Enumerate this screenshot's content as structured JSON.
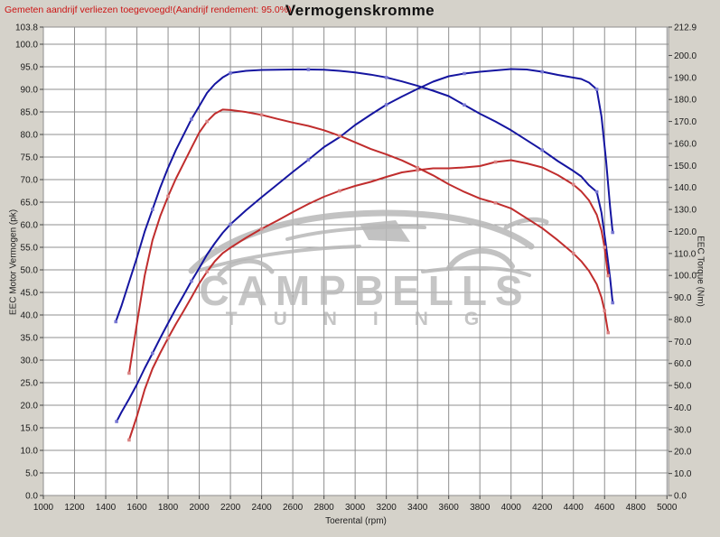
{
  "header": {
    "note": "Gemeten aandrijf verliezen toegevoegd!(Aandrijf rendement: 95.0%)",
    "title": "Vermogenskromme"
  },
  "watermark": {
    "line1": "CAMPBELLS",
    "line2": "TUNING"
  },
  "colors": {
    "background": "#d5d2ca",
    "plot_background": "#ffffff",
    "grid": "#8f8f8f",
    "note_text": "#cc1414",
    "watermark_gray": "#b7b7b7",
    "curve_blue": "#1515a0",
    "curve_blue_marker": "#7878d2",
    "curve_red": "#c02d2d",
    "curve_red_marker": "#d98585"
  },
  "chart_data": {
    "type": "line",
    "title": "Vermogenskromme",
    "xlabel": "Toerental (rpm)",
    "ylabel_left": "EEC Motor Vermogen (pk)",
    "ylabel_right": "EEC Torque (Nm)",
    "grid": true,
    "legend": "none",
    "x_range": [
      1000,
      5010
    ],
    "y_left_range": [
      0,
      103.8
    ],
    "y_right_range": [
      0,
      212.9
    ],
    "x_ticks": [
      1000,
      1200,
      1400,
      1600,
      1800,
      2000,
      2200,
      2400,
      2600,
      2800,
      3000,
      3200,
      3400,
      3600,
      3800,
      4000,
      4200,
      4400,
      4600,
      4800,
      5000
    ],
    "y_left_ticks": [
      103.8,
      100.0,
      95.0,
      90.0,
      85.0,
      80.0,
      75.0,
      70.0,
      65.0,
      60.0,
      55.0,
      50.0,
      45.0,
      40.0,
      35.0,
      30.0,
      25.0,
      20.0,
      15.0,
      10.0,
      5.0,
      0.0
    ],
    "y_right_ticks": [
      212.9,
      200.0,
      190.0,
      180.0,
      170.0,
      160.0,
      150.0,
      140.0,
      130.0,
      120.0,
      110.0,
      100.0,
      90.0,
      80.0,
      70.0,
      60.0,
      50.0,
      40.0,
      30.0,
      20.0,
      10.0,
      0.0
    ],
    "series": [
      {
        "name": "power-blue",
        "axis": "left",
        "color": "#1515a0",
        "marker_color": "#7878d2",
        "peak": "94.5 pk @ 4000 rpm",
        "points": [
          [
            1470,
            16.4
          ],
          [
            1500,
            18.4
          ],
          [
            1550,
            21.4
          ],
          [
            1600,
            24.6
          ],
          [
            1650,
            28.2
          ],
          [
            1700,
            31.5
          ],
          [
            1750,
            34.9
          ],
          [
            1800,
            38.2
          ],
          [
            1850,
            41.4
          ],
          [
            1900,
            44.4
          ],
          [
            1950,
            47.5
          ],
          [
            2000,
            50.4
          ],
          [
            2050,
            53.4
          ],
          [
            2100,
            55.9
          ],
          [
            2150,
            58.2
          ],
          [
            2200,
            60.1
          ],
          [
            2300,
            63.2
          ],
          [
            2400,
            66.1
          ],
          [
            2500,
            68.9
          ],
          [
            2600,
            71.7
          ],
          [
            2700,
            74.4
          ],
          [
            2800,
            77.2
          ],
          [
            2900,
            79.4
          ],
          [
            3000,
            82.1
          ],
          [
            3100,
            84.4
          ],
          [
            3200,
            86.6
          ],
          [
            3300,
            88.4
          ],
          [
            3400,
            90.1
          ],
          [
            3500,
            91.7
          ],
          [
            3600,
            92.9
          ],
          [
            3700,
            93.5
          ],
          [
            3800,
            93.9
          ],
          [
            3900,
            94.2
          ],
          [
            4000,
            94.5
          ],
          [
            4100,
            94.4
          ],
          [
            4200,
            93.9
          ],
          [
            4300,
            93.2
          ],
          [
            4400,
            92.6
          ],
          [
            4450,
            92.3
          ],
          [
            4500,
            91.5
          ],
          [
            4550,
            90.0
          ],
          [
            4580,
            84.0
          ],
          [
            4610,
            74.0
          ],
          [
            4635,
            64.0
          ],
          [
            4652,
            58.3
          ]
        ]
      },
      {
        "name": "torque-blue",
        "axis": "right",
        "color": "#1515a0",
        "marker_color": "#7878d2",
        "peak": "193.6 Nm @ 2600 rpm",
        "points": [
          [
            1465,
            79
          ],
          [
            1500,
            86
          ],
          [
            1550,
            97
          ],
          [
            1600,
            108
          ],
          [
            1650,
            120
          ],
          [
            1700,
            130
          ],
          [
            1750,
            140
          ],
          [
            1800,
            149
          ],
          [
            1850,
            157
          ],
          [
            1900,
            164
          ],
          [
            1950,
            171
          ],
          [
            2000,
            177
          ],
          [
            2050,
            183
          ],
          [
            2100,
            187
          ],
          [
            2150,
            190
          ],
          [
            2200,
            192
          ],
          [
            2300,
            193
          ],
          [
            2400,
            193.4
          ],
          [
            2500,
            193.5
          ],
          [
            2600,
            193.6
          ],
          [
            2700,
            193.6
          ],
          [
            2800,
            193.5
          ],
          [
            2900,
            193.0
          ],
          [
            3000,
            192.3
          ],
          [
            3100,
            191.3
          ],
          [
            3200,
            190.0
          ],
          [
            3300,
            188.2
          ],
          [
            3400,
            186.2
          ],
          [
            3500,
            184.0
          ],
          [
            3600,
            181.5
          ],
          [
            3700,
            177.5
          ],
          [
            3800,
            173.5
          ],
          [
            3900,
            170.0
          ],
          [
            4000,
            166.0
          ],
          [
            4100,
            161.5
          ],
          [
            4200,
            157.0
          ],
          [
            4300,
            152.0
          ],
          [
            4400,
            147.5
          ],
          [
            4450,
            145.0
          ],
          [
            4500,
            141.0
          ],
          [
            4550,
            138.0
          ],
          [
            4580,
            128.5
          ],
          [
            4610,
            113.0
          ],
          [
            4635,
            99.0
          ],
          [
            4652,
            87.6
          ]
        ]
      },
      {
        "name": "power-red",
        "axis": "left",
        "color": "#c02d2d",
        "marker_color": "#d98585",
        "peak": "74.3 pk @ 4000 rpm",
        "points": [
          [
            1550,
            12.3
          ],
          [
            1600,
            17.5
          ],
          [
            1650,
            23.5
          ],
          [
            1700,
            28.1
          ],
          [
            1750,
            31.6
          ],
          [
            1800,
            34.9
          ],
          [
            1850,
            38.0
          ],
          [
            1900,
            40.9
          ],
          [
            1950,
            43.9
          ],
          [
            2000,
            47.0
          ],
          [
            2050,
            49.6
          ],
          [
            2100,
            51.9
          ],
          [
            2150,
            53.7
          ],
          [
            2200,
            54.9
          ],
          [
            2300,
            57.1
          ],
          [
            2400,
            59.1
          ],
          [
            2500,
            60.9
          ],
          [
            2600,
            62.8
          ],
          [
            2700,
            64.6
          ],
          [
            2800,
            66.2
          ],
          [
            2900,
            67.5
          ],
          [
            3000,
            68.6
          ],
          [
            3100,
            69.5
          ],
          [
            3200,
            70.6
          ],
          [
            3300,
            71.6
          ],
          [
            3400,
            72.1
          ],
          [
            3500,
            72.5
          ],
          [
            3600,
            72.5
          ],
          [
            3700,
            72.7
          ],
          [
            3800,
            73.0
          ],
          [
            3900,
            73.9
          ],
          [
            4000,
            74.3
          ],
          [
            4100,
            73.6
          ],
          [
            4200,
            72.7
          ],
          [
            4300,
            71.0
          ],
          [
            4400,
            68.9
          ],
          [
            4450,
            67.4
          ],
          [
            4500,
            65.4
          ],
          [
            4550,
            62.2
          ],
          [
            4580,
            58.7
          ],
          [
            4600,
            55.0
          ],
          [
            4623,
            48.7
          ]
        ]
      },
      {
        "name": "torque-red",
        "axis": "right",
        "color": "#c02d2d",
        "marker_color": "#d98585",
        "peak": "175.4 Nm @ 2150 rpm",
        "points": [
          [
            1550,
            55.6
          ],
          [
            1600,
            78
          ],
          [
            1650,
            100
          ],
          [
            1700,
            116
          ],
          [
            1750,
            127
          ],
          [
            1800,
            136
          ],
          [
            1850,
            144
          ],
          [
            1900,
            151
          ],
          [
            1950,
            158
          ],
          [
            2000,
            165
          ],
          [
            2050,
            170
          ],
          [
            2100,
            173.5
          ],
          [
            2150,
            175.4
          ],
          [
            2200,
            175.2
          ],
          [
            2300,
            174.3
          ],
          [
            2400,
            173.0
          ],
          [
            2500,
            171.2
          ],
          [
            2600,
            169.5
          ],
          [
            2700,
            168.0
          ],
          [
            2800,
            166.0
          ],
          [
            2900,
            163.5
          ],
          [
            3000,
            160.5
          ],
          [
            3100,
            157.5
          ],
          [
            3200,
            155.0
          ],
          [
            3300,
            152.3
          ],
          [
            3400,
            149.0
          ],
          [
            3500,
            145.5
          ],
          [
            3600,
            141.5
          ],
          [
            3700,
            138.0
          ],
          [
            3800,
            135.0
          ],
          [
            3900,
            133.0
          ],
          [
            4000,
            130.5
          ],
          [
            4100,
            126.0
          ],
          [
            4200,
            121.5
          ],
          [
            4300,
            116.0
          ],
          [
            4400,
            110.0
          ],
          [
            4450,
            106.5
          ],
          [
            4500,
            102.0
          ],
          [
            4550,
            96.0
          ],
          [
            4580,
            90.0
          ],
          [
            4600,
            84.0
          ],
          [
            4623,
            74.0
          ]
        ]
      }
    ]
  }
}
